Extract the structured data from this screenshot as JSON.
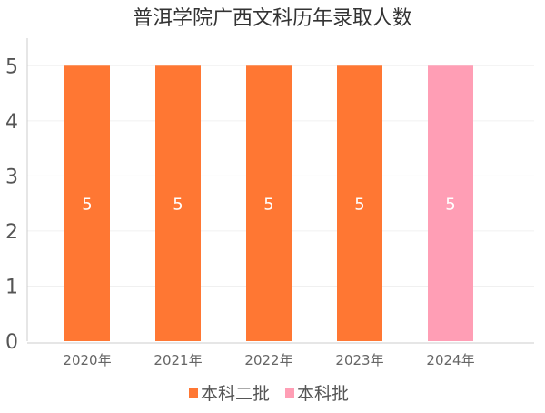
{
  "chart_data": {
    "type": "bar",
    "title": "普洱学院广西文科历年录取人数",
    "categories": [
      "2020年",
      "2021年",
      "2022年",
      "2023年",
      "2024年"
    ],
    "series": [
      {
        "name": "本科二批",
        "color": "#ff7733",
        "values": [
          5,
          5,
          5,
          5,
          null
        ]
      },
      {
        "name": "本科批",
        "color": "#ff9eb5",
        "values": [
          null,
          null,
          null,
          null,
          5
        ]
      }
    ],
    "ylim": [
      0,
      5.5
    ],
    "yticks": [
      "0",
      "1",
      "2",
      "3",
      "4",
      "5"
    ],
    "data_labels": [
      "5",
      "5",
      "5",
      "5",
      "5"
    ],
    "legend_position": "bottom",
    "grid": true
  }
}
